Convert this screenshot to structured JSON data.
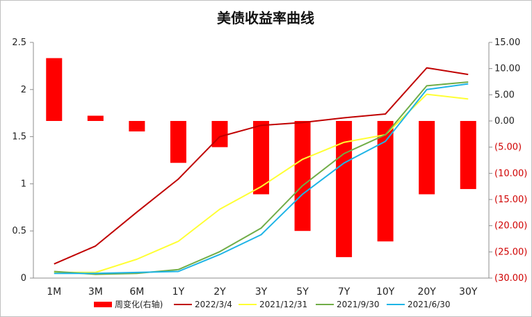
{
  "chart_data": {
    "type": "bar+line",
    "title": "美债收益率曲线",
    "categories": [
      "1M",
      "3M",
      "6M",
      "1Y",
      "2Y",
      "3Y",
      "5Y",
      "7Y",
      "10Y",
      "20Y",
      "30Y"
    ],
    "y_left": {
      "min": 0,
      "max": 2.5,
      "step": 0.5,
      "ticks": [
        "0",
        "0.5",
        "1",
        "1.5",
        "2",
        "2.5"
      ]
    },
    "y_right": {
      "min": -30,
      "max": 15,
      "step": 5,
      "ticks": [
        "15.00",
        "10.00",
        "5.00",
        "0.00",
        "(5.00)",
        "(10.00)",
        "(15.00)",
        "(20.00)",
        "(25.00)",
        "(30.00)"
      ],
      "negative_color": "#d00000"
    },
    "bar_series": {
      "name": "周变化(右轴)",
      "color": "#ff0000",
      "axis": "right",
      "values": [
        12.0,
        1.0,
        -2.0,
        -8.0,
        -5.0,
        -14.0,
        -21.0,
        -26.0,
        -23.0,
        -14.0,
        -13.0
      ]
    },
    "line_series": [
      {
        "name": "2022/3/4",
        "color": "#c00000",
        "values": [
          0.15,
          0.34,
          0.7,
          1.05,
          1.5,
          1.62,
          1.65,
          1.7,
          1.74,
          2.23,
          2.16
        ]
      },
      {
        "name": "2021/12/31",
        "color": "#ffff33",
        "values": [
          0.06,
          0.06,
          0.2,
          0.39,
          0.73,
          0.97,
          1.26,
          1.44,
          1.52,
          1.95,
          1.9
        ]
      },
      {
        "name": "2021/9/30",
        "color": "#70ad47",
        "values": [
          0.07,
          0.04,
          0.05,
          0.09,
          0.28,
          0.53,
          0.98,
          1.32,
          1.52,
          2.04,
          2.08
        ]
      },
      {
        "name": "2021/6/30",
        "color": "#1eb4e6",
        "values": [
          0.05,
          0.05,
          0.06,
          0.07,
          0.25,
          0.46,
          0.89,
          1.22,
          1.45,
          2.0,
          2.06
        ]
      }
    ],
    "legend_position": "bottom",
    "grid": false
  }
}
